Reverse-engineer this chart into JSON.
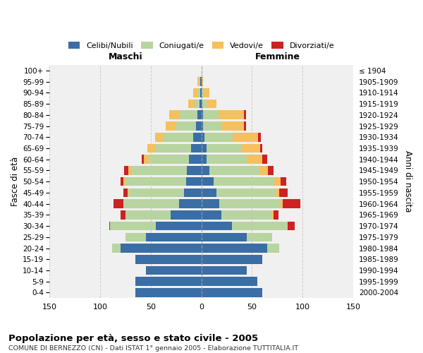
{
  "age_groups": [
    "0-4",
    "5-9",
    "10-14",
    "15-19",
    "20-24",
    "25-29",
    "30-34",
    "35-39",
    "40-44",
    "45-49",
    "50-54",
    "55-59",
    "60-64",
    "65-69",
    "70-74",
    "75-79",
    "80-84",
    "85-89",
    "90-94",
    "95-99",
    "100+"
  ],
  "birth_years": [
    "2000-2004",
    "1995-1999",
    "1990-1994",
    "1985-1989",
    "1980-1984",
    "1975-1979",
    "1970-1974",
    "1965-1969",
    "1960-1964",
    "1955-1959",
    "1950-1954",
    "1945-1949",
    "1940-1944",
    "1935-1939",
    "1930-1934",
    "1925-1929",
    "1920-1924",
    "1915-1919",
    "1910-1914",
    "1905-1909",
    "≤ 1904"
  ],
  "maschi": {
    "celibi": [
      65,
      65,
      55,
      65,
      80,
      55,
      45,
      30,
      22,
      17,
      15,
      14,
      12,
      10,
      8,
      5,
      4,
      2,
      1,
      1,
      0
    ],
    "coniugati": [
      0,
      0,
      0,
      0,
      8,
      20,
      45,
      45,
      55,
      55,
      60,
      55,
      40,
      35,
      30,
      20,
      18,
      5,
      2,
      1,
      0
    ],
    "vedovi": [
      0,
      0,
      0,
      0,
      0,
      0,
      0,
      0,
      0,
      1,
      2,
      3,
      5,
      8,
      8,
      10,
      10,
      6,
      5,
      2,
      0
    ],
    "divorziati": [
      0,
      0,
      0,
      0,
      0,
      0,
      1,
      5,
      10,
      4,
      3,
      4,
      2,
      0,
      0,
      0,
      0,
      0,
      0,
      0,
      0
    ]
  },
  "femmine": {
    "nubili": [
      60,
      55,
      45,
      60,
      65,
      45,
      30,
      20,
      18,
      15,
      12,
      8,
      5,
      5,
      3,
      2,
      2,
      1,
      0,
      0,
      0
    ],
    "coniugate": [
      0,
      0,
      0,
      0,
      12,
      25,
      55,
      50,
      60,
      58,
      60,
      50,
      40,
      35,
      28,
      18,
      15,
      4,
      2,
      0,
      0
    ],
    "vedove": [
      0,
      0,
      0,
      0,
      0,
      0,
      0,
      1,
      2,
      4,
      6,
      8,
      15,
      18,
      25,
      22,
      25,
      10,
      6,
      2,
      0
    ],
    "divorziate": [
      0,
      0,
      0,
      0,
      0,
      0,
      7,
      5,
      18,
      8,
      6,
      5,
      5,
      2,
      3,
      2,
      2,
      0,
      0,
      0,
      0
    ]
  },
  "colors": {
    "celibi": "#3a6ea5",
    "coniugati": "#b8d4a0",
    "vedovi": "#f5c060",
    "divorziati": "#cc2222"
  },
  "xlim": 150,
  "title": "Popolazione per età, sesso e stato civile - 2005",
  "subtitle": "COMUNE DI BERNEZZO (CN) - Dati ISTAT 1° gennaio 2005 - Elaborazione TUTTITALIA.IT",
  "ylabel_left": "Fasce di età",
  "ylabel_right": "Anni di nascita",
  "header_maschi": "Maschi",
  "header_femmine": "Femmine",
  "legend_labels": [
    "Celibi/Nubili",
    "Coniugati/e",
    "Vedovi/e",
    "Divorziati/e"
  ],
  "bg_color": "#ffffff",
  "plot_bg_color": "#f0f0f0",
  "grid_color": "#cccccc"
}
